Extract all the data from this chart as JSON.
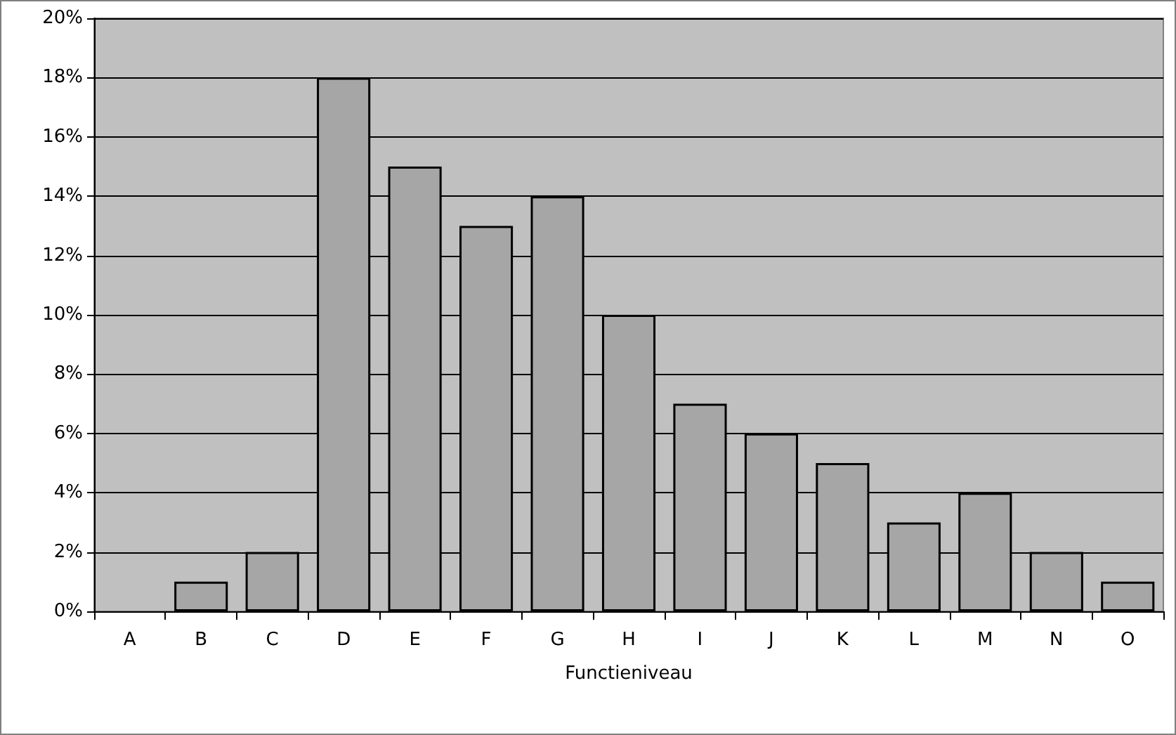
{
  "chart_data": {
    "type": "bar",
    "xlabel": "Functieniveau",
    "categories": [
      "A",
      "B",
      "C",
      "D",
      "E",
      "F",
      "G",
      "H",
      "I",
      "J",
      "K",
      "L",
      "M",
      "N",
      "O"
    ],
    "values": [
      0,
      1,
      2,
      18,
      15,
      13,
      14,
      10,
      7,
      6,
      5,
      3,
      4,
      2,
      1
    ],
    "color": "#a6a6a6",
    "ylim": [
      0,
      20
    ],
    "yticks": [
      {
        "value": 0,
        "label": "0%"
      },
      {
        "value": 2,
        "label": "2%"
      },
      {
        "value": 4,
        "label": "4%"
      },
      {
        "value": 6,
        "label": "6%"
      },
      {
        "value": 8,
        "label": "8%"
      },
      {
        "value": 10,
        "label": "10%"
      },
      {
        "value": 12,
        "label": "12%"
      },
      {
        "value": 14,
        "label": "14%"
      },
      {
        "value": 16,
        "label": "16%"
      },
      {
        "value": 18,
        "label": "18%"
      },
      {
        "value": 20,
        "label": "20%"
      }
    ],
    "grid": "y"
  }
}
